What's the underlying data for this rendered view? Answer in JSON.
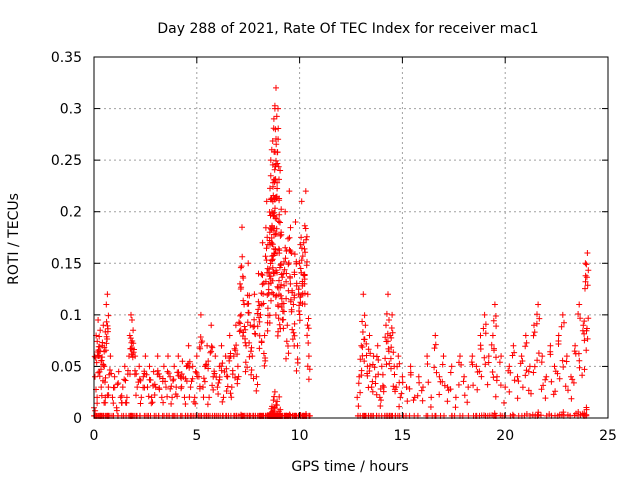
{
  "chart_data": {
    "type": "scatter",
    "title": "Day 288 of 2021, Rate Of TEC Index for receiver mac1",
    "xlabel": "GPS time / hours",
    "ylabel": "ROTI / TECUs",
    "xlim": [
      0,
      25
    ],
    "ylim": [
      0,
      0.35
    ],
    "x_ticks": [
      0,
      5,
      10,
      15,
      20,
      25
    ],
    "y_ticks": [
      0,
      0.05,
      0.1,
      0.15,
      0.2,
      0.25,
      0.3,
      0.35
    ],
    "x_tick_labels": [
      "0",
      "5",
      "10",
      "15",
      "20",
      "25"
    ],
    "y_tick_labels": [
      "0",
      "0.05",
      "0.1",
      "0.15",
      "0.2",
      "0.25",
      "0.3",
      "0.35"
    ],
    "grid": true,
    "marker": "+",
    "marker_color": "#ff0000",
    "data_gap_hours": [
      10.5,
      12.7
    ],
    "series": [
      {
        "points": [
          [
            0.0,
            0.01
          ],
          [
            0.05,
            0.04
          ],
          [
            0.1,
            0.08
          ],
          [
            0.15,
            0.02
          ],
          [
            0.2,
            0.095
          ],
          [
            0.25,
            0.06
          ],
          [
            0.3,
            0.085
          ],
          [
            0.35,
            0.03
          ],
          [
            0.4,
            0.07
          ],
          [
            0.45,
            0.09
          ],
          [
            0.5,
            0.05
          ],
          [
            0.55,
            0.02
          ],
          [
            0.6,
            0.11
          ],
          [
            0.65,
            0.12
          ],
          [
            0.7,
            0.03
          ],
          [
            0.8,
            0.06
          ],
          [
            0.9,
            0.02
          ],
          [
            1.0,
            0.04
          ],
          [
            1.1,
            0.01
          ],
          [
            1.2,
            0.045
          ],
          [
            1.3,
            0.02
          ],
          [
            1.4,
            0.03
          ],
          [
            1.5,
            0.05
          ],
          [
            1.6,
            0.02
          ],
          [
            1.7,
            0.06
          ],
          [
            1.8,
            0.1
          ],
          [
            1.85,
            0.095
          ],
          [
            1.9,
            0.085
          ],
          [
            2.0,
            0.06
          ],
          [
            2.1,
            0.03
          ],
          [
            2.2,
            0.05
          ],
          [
            2.3,
            0.02
          ],
          [
            2.4,
            0.04
          ],
          [
            2.5,
            0.06
          ],
          [
            2.6,
            0.03
          ],
          [
            2.7,
            0.05
          ],
          [
            2.8,
            0.02
          ],
          [
            2.9,
            0.045
          ],
          [
            3.0,
            0.03
          ],
          [
            3.1,
            0.06
          ],
          [
            3.2,
            0.04
          ],
          [
            3.3,
            0.02
          ],
          [
            3.4,
            0.05
          ],
          [
            3.5,
            0.03
          ],
          [
            3.6,
            0.06
          ],
          [
            3.7,
            0.04
          ],
          [
            3.8,
            0.02
          ],
          [
            3.9,
            0.05
          ],
          [
            4.0,
            0.03
          ],
          [
            4.1,
            0.06
          ],
          [
            4.2,
            0.04
          ],
          [
            4.3,
            0.055
          ],
          [
            4.4,
            0.02
          ],
          [
            4.5,
            0.05
          ],
          [
            4.6,
            0.07
          ],
          [
            4.7,
            0.03
          ],
          [
            4.8,
            0.05
          ],
          [
            4.9,
            0.02
          ],
          [
            5.0,
            0.06
          ],
          [
            5.1,
            0.04
          ],
          [
            5.2,
            0.1
          ],
          [
            5.3,
            0.03
          ],
          [
            5.4,
            0.05
          ],
          [
            5.5,
            0.07
          ],
          [
            5.6,
            0.02
          ],
          [
            5.7,
            0.09
          ],
          [
            5.8,
            0.04
          ],
          [
            5.9,
            0.06
          ],
          [
            6.0,
            0.03
          ],
          [
            6.1,
            0.05
          ],
          [
            6.2,
            0.07
          ],
          [
            6.3,
            0.02
          ],
          [
            6.4,
            0.06
          ],
          [
            6.5,
            0.04
          ],
          [
            6.6,
            0.08
          ],
          [
            6.7,
            0.03
          ],
          [
            6.8,
            0.06
          ],
          [
            6.9,
            0.09
          ],
          [
            7.0,
            0.05
          ],
          [
            7.1,
            0.13
          ],
          [
            7.2,
            0.185
          ],
          [
            7.3,
            0.11
          ],
          [
            7.4,
            0.07
          ],
          [
            7.5,
            0.15
          ],
          [
            7.6,
            0.09
          ],
          [
            7.7,
            0.06
          ],
          [
            7.8,
            0.12
          ],
          [
            7.9,
            0.04
          ],
          [
            8.0,
            0.14
          ],
          [
            8.1,
            0.1
          ],
          [
            8.2,
            0.17
          ],
          [
            8.3,
            0.08
          ],
          [
            8.4,
            0.21
          ],
          [
            8.5,
            0.13
          ],
          [
            8.55,
            0.18
          ],
          [
            8.6,
            0.25
          ],
          [
            8.65,
            0.26
          ],
          [
            8.7,
            0.21
          ],
          [
            8.75,
            0.29
          ],
          [
            8.8,
            0.3
          ],
          [
            8.85,
            0.32
          ],
          [
            8.9,
            0.16
          ],
          [
            8.95,
            0.3
          ],
          [
            9.0,
            0.12
          ],
          [
            9.05,
            0.24
          ],
          [
            9.1,
            0.18
          ],
          [
            9.2,
            0.14
          ],
          [
            9.3,
            0.2
          ],
          [
            9.4,
            0.09
          ],
          [
            9.5,
            0.22
          ],
          [
            9.6,
            0.16
          ],
          [
            9.7,
            0.11
          ],
          [
            9.8,
            0.19
          ],
          [
            9.9,
            0.07
          ],
          [
            10.0,
            0.15
          ],
          [
            10.1,
            0.21
          ],
          [
            10.2,
            0.17
          ],
          [
            10.3,
            0.22
          ],
          [
            10.4,
            0.12
          ],
          [
            10.45,
            0.06
          ],
          [
            12.8,
            0.02
          ],
          [
            12.9,
            0.04
          ],
          [
            13.0,
            0.07
          ],
          [
            13.1,
            0.12
          ],
          [
            13.2,
            0.09
          ],
          [
            13.3,
            0.05
          ],
          [
            13.4,
            0.08
          ],
          [
            13.5,
            0.03
          ],
          [
            13.6,
            0.06
          ],
          [
            13.7,
            0.04
          ],
          [
            13.8,
            0.07
          ],
          [
            13.9,
            0.02
          ],
          [
            14.0,
            0.05
          ],
          [
            14.1,
            0.03
          ],
          [
            14.2,
            0.09
          ],
          [
            14.3,
            0.12
          ],
          [
            14.4,
            0.08
          ],
          [
            14.5,
            0.1
          ],
          [
            14.6,
            0.05
          ],
          [
            14.7,
            0.03
          ],
          [
            14.8,
            0.06
          ],
          [
            14.9,
            0.02
          ],
          [
            15.0,
            0.04
          ],
          [
            15.2,
            0.03
          ],
          [
            15.4,
            0.05
          ],
          [
            15.6,
            0.02
          ],
          [
            15.8,
            0.04
          ],
          [
            16.0,
            0.03
          ],
          [
            16.2,
            0.06
          ],
          [
            16.4,
            0.02
          ],
          [
            16.6,
            0.08
          ],
          [
            16.8,
            0.04
          ],
          [
            17.0,
            0.06
          ],
          [
            17.2,
            0.03
          ],
          [
            17.4,
            0.05
          ],
          [
            17.6,
            0.02
          ],
          [
            17.8,
            0.06
          ],
          [
            18.0,
            0.04
          ],
          [
            18.2,
            0.03
          ],
          [
            18.4,
            0.06
          ],
          [
            18.6,
            0.05
          ],
          [
            18.8,
            0.08
          ],
          [
            19.0,
            0.1
          ],
          [
            19.2,
            0.06
          ],
          [
            19.4,
            0.08
          ],
          [
            19.5,
            0.11
          ],
          [
            19.6,
            0.04
          ],
          [
            19.8,
            0.06
          ],
          [
            20.0,
            0.03
          ],
          [
            20.2,
            0.05
          ],
          [
            20.4,
            0.07
          ],
          [
            20.6,
            0.04
          ],
          [
            20.8,
            0.06
          ],
          [
            21.0,
            0.08
          ],
          [
            21.2,
            0.05
          ],
          [
            21.4,
            0.09
          ],
          [
            21.6,
            0.11
          ],
          [
            21.8,
            0.06
          ],
          [
            22.0,
            0.04
          ],
          [
            22.2,
            0.07
          ],
          [
            22.4,
            0.05
          ],
          [
            22.6,
            0.08
          ],
          [
            22.8,
            0.1
          ],
          [
            23.0,
            0.06
          ],
          [
            23.2,
            0.04
          ],
          [
            23.4,
            0.07
          ],
          [
            23.6,
            0.11
          ],
          [
            23.8,
            0.09
          ],
          [
            23.9,
            0.15
          ],
          [
            24.0,
            0.16
          ]
        ]
      }
    ]
  }
}
